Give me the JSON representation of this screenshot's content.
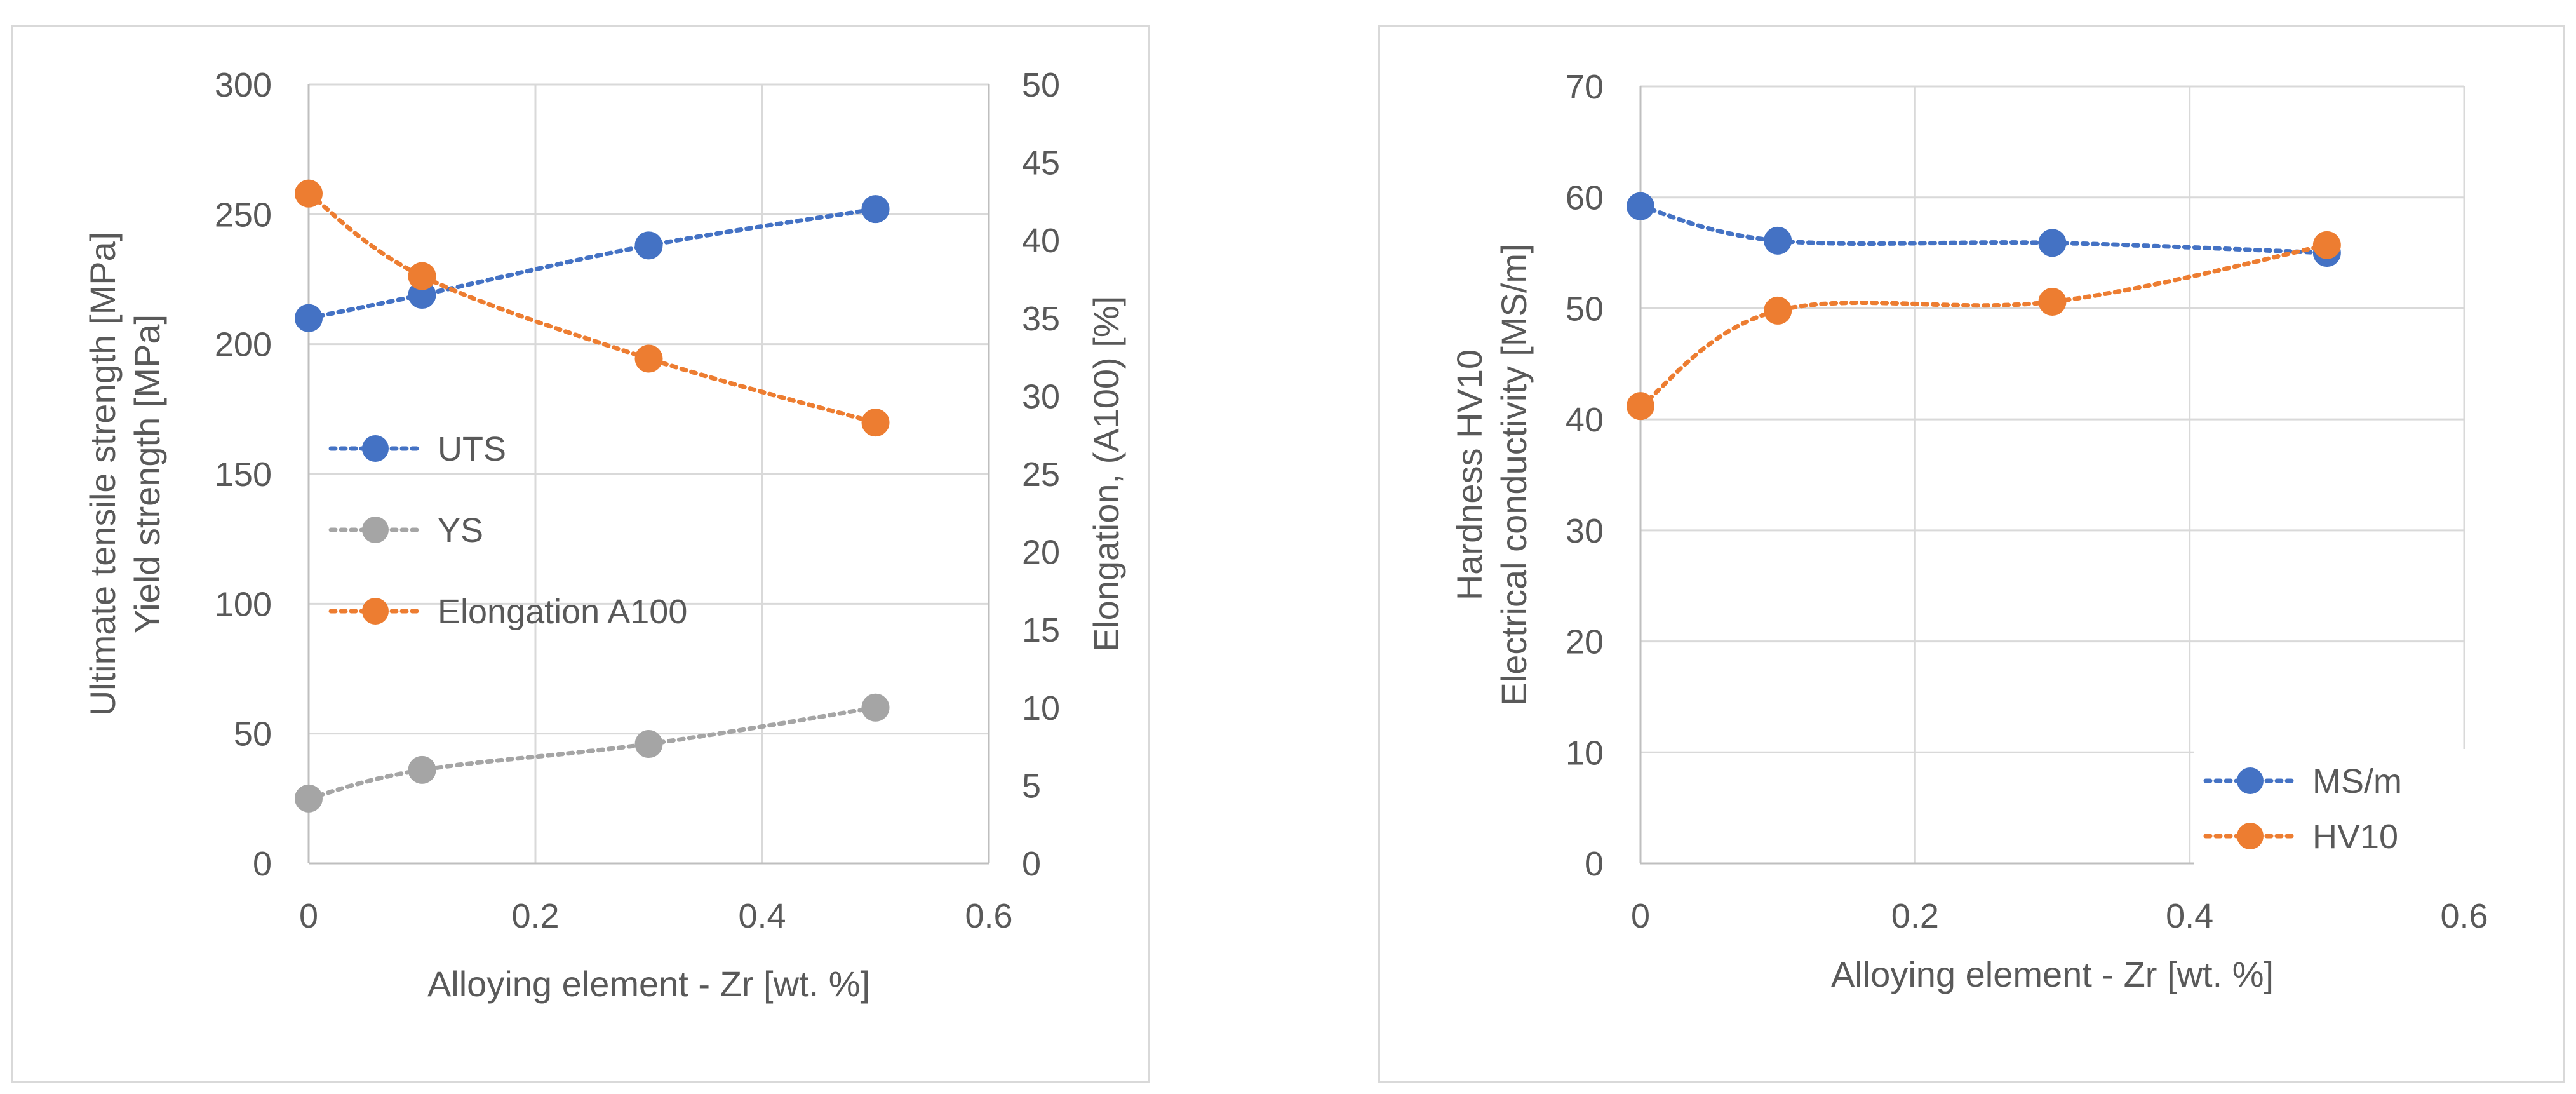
{
  "chart_data": [
    {
      "type": "line",
      "title": "",
      "xlabel": "Alloying element - Zr [wt. %]",
      "ylabel": [
        "Ultimate tensile strength [MPa]",
        "Yield strength [MPa]"
      ],
      "y2label": "Elongation, (A100) [%]",
      "xlim": [
        0,
        0.6
      ],
      "ylim": [
        0,
        300
      ],
      "y2lim": [
        0,
        50
      ],
      "xticks": [
        "0",
        "0.2",
        "0.4",
        "0.6"
      ],
      "yticks": [
        "0",
        "50",
        "100",
        "150",
        "200",
        "250",
        "300"
      ],
      "y2ticks": [
        "0",
        "5",
        "10",
        "15",
        "20",
        "25",
        "30",
        "35",
        "40",
        "45",
        "50"
      ],
      "x": [
        0,
        0.1,
        0.3,
        0.5
      ],
      "grid": true,
      "legend_position": "center-left",
      "series": [
        {
          "name": "UTS",
          "axis": "left",
          "color": "#4472C4",
          "values": [
            210,
            219,
            238,
            252
          ]
        },
        {
          "name": "YS",
          "axis": "left",
          "color": "#A5A5A5",
          "values": [
            25,
            36,
            46,
            60
          ]
        },
        {
          "name": "Elongation A100",
          "axis": "right",
          "color": "#ED7D31",
          "values": [
            43,
            37.7,
            32.4,
            28.3
          ]
        }
      ]
    },
    {
      "type": "line",
      "title": "",
      "xlabel": "Alloying element - Zr  [wt. %]",
      "ylabel": [
        "Hardness HV10",
        "Electrical conductivity [MS/m]"
      ],
      "xlim": [
        0,
        0.6
      ],
      "ylim": [
        0,
        70
      ],
      "xticks": [
        "0",
        "0.2",
        "0.4",
        "0.6"
      ],
      "yticks": [
        "0",
        "10",
        "20",
        "30",
        "40",
        "50",
        "60",
        "70"
      ],
      "x": [
        0,
        0.1,
        0.3,
        0.5
      ],
      "grid": true,
      "legend_position": "bottom-right",
      "series": [
        {
          "name": "MS/m",
          "axis": "left",
          "color": "#4472C4",
          "values": [
            59.2,
            56.1,
            55.9,
            55.0
          ]
        },
        {
          "name": "HV10",
          "axis": "left",
          "color": "#ED7D31",
          "values": [
            41.2,
            49.8,
            50.6,
            55.7
          ]
        }
      ]
    }
  ]
}
